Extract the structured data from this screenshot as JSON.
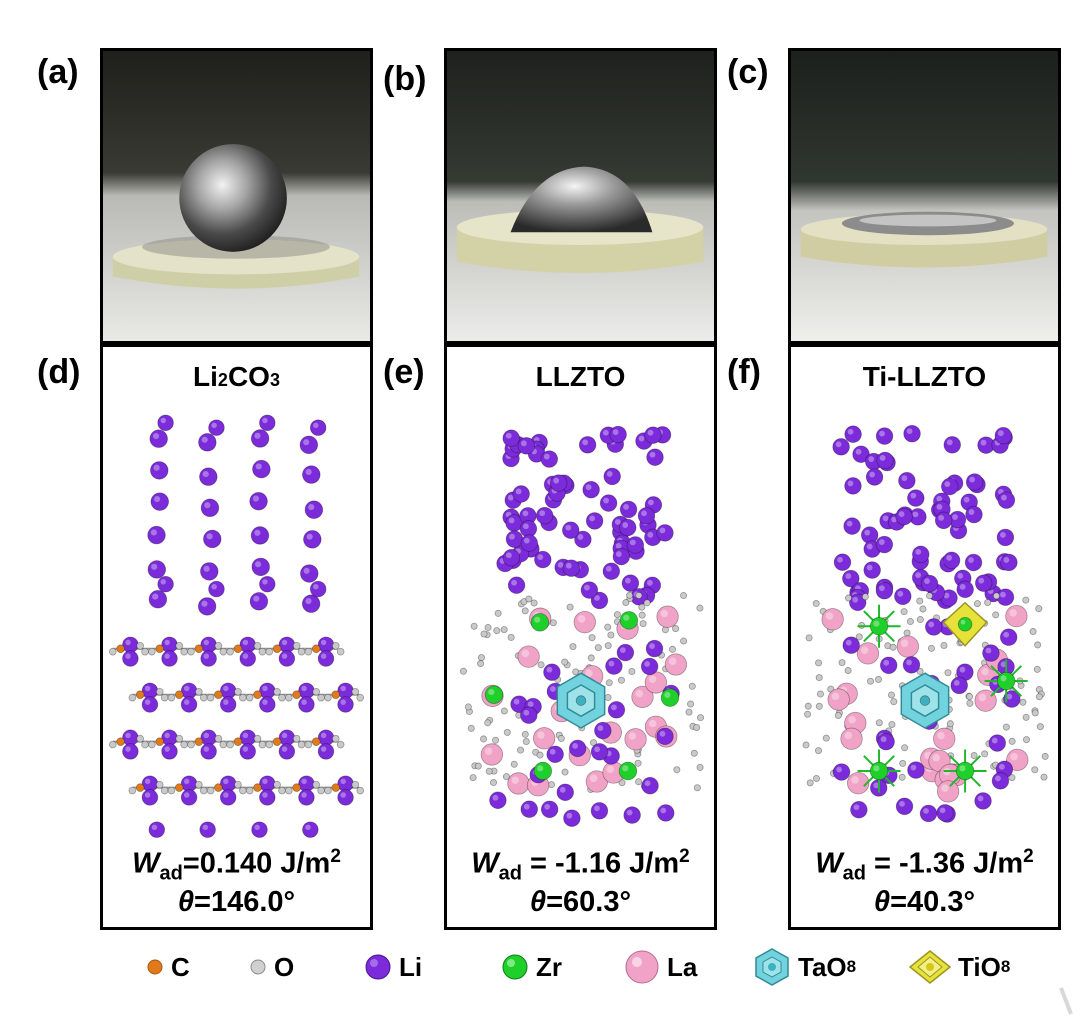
{
  "panel_labels": [
    "(a)",
    "(b)",
    "(c)",
    "(d)",
    "(e)",
    "(f)"
  ],
  "panels": {
    "d": {
      "title_main": "Li",
      "title_sub1": "2",
      "title_mid": "CO",
      "title_sub2": "3",
      "wad_symbol": "W",
      "wad_sub": "ad",
      "wad_value": "=0.140 J/m",
      "wad_sup": "2",
      "theta_symbol": "θ",
      "theta_value": "=146.0°"
    },
    "e": {
      "title": "LLZTO",
      "wad_symbol": "W",
      "wad_sub": "ad",
      "wad_value": " = -1.16 J/m",
      "wad_sup": "2",
      "theta_symbol": "θ",
      "theta_value": "=60.3°"
    },
    "f": {
      "title": "Ti-LLZTO",
      "wad_symbol": "W",
      "wad_sub": "ad",
      "wad_value": " = -1.36 J/m",
      "wad_sup": "2",
      "theta_symbol": "θ",
      "theta_value": "=40.3°"
    }
  },
  "legend": {
    "c": "C",
    "o": "O",
    "li": "Li",
    "zr": "Zr",
    "la": "La",
    "tao_main": "TaO",
    "tao_sub": "8",
    "tio_main": "TiO",
    "tio_sub": "8"
  },
  "colors": {
    "li": "#7b2bd9",
    "c": "#e07a1a",
    "o": "#c9c9c9",
    "zr": "#1fcf2a",
    "la": "#f0a3c6",
    "tao": "#72d2dd",
    "tio": "#e6e23a"
  }
}
